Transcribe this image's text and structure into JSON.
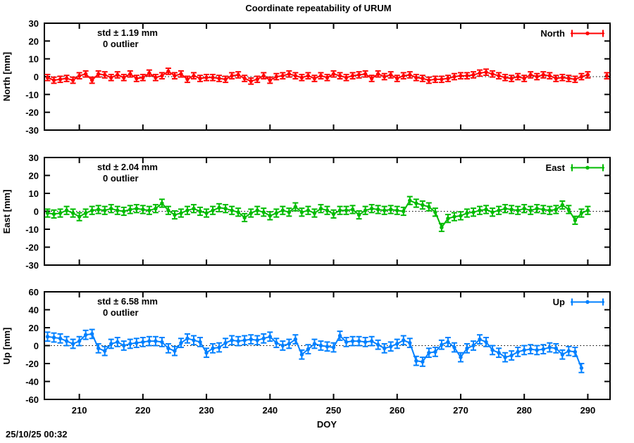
{
  "title": "Coordinate repeatability of URUM",
  "timestamp": "25/10/25 00:32",
  "chart_data": {
    "type": "line",
    "subtype": "yerrorbars-linespoints",
    "title": "Coordinate repeatability of URUM",
    "xlabel": "DOY",
    "x_range": [
      204.5,
      293.5
    ],
    "x_ticks": [
      210,
      220,
      230,
      240,
      250,
      260,
      270,
      280,
      290
    ],
    "grid": "zero-dotted-line-only",
    "legend_position": "top-right-inside",
    "doy": [
      205,
      206,
      207,
      208,
      209,
      210,
      211,
      212,
      213,
      214,
      215,
      216,
      217,
      218,
      219,
      220,
      221,
      222,
      223,
      224,
      225,
      226,
      227,
      228,
      229,
      230,
      231,
      232,
      233,
      234,
      235,
      236,
      237,
      238,
      239,
      240,
      241,
      242,
      243,
      244,
      245,
      246,
      247,
      248,
      249,
      250,
      251,
      252,
      253,
      254,
      255,
      256,
      257,
      258,
      259,
      260,
      261,
      262,
      263,
      264,
      265,
      266,
      267,
      268,
      269,
      270,
      271,
      272,
      273,
      274,
      275,
      276,
      277,
      278,
      279,
      280,
      281,
      282,
      283,
      284,
      285,
      286,
      287,
      288,
      289,
      290,
      291,
      292,
      293
    ],
    "panels": [
      {
        "name": "North",
        "ylabel": "North [mm]",
        "std_label": "std ± 1.19 mm",
        "outlier_label": "0 outlier",
        "color": "#ff0000",
        "ylim": [
          -30,
          30
        ],
        "yticks": [
          30,
          20,
          10,
          0,
          -10,
          -20,
          -30
        ],
        "ebar": 1.7,
        "values": [
          -0.5,
          -2,
          -1.5,
          -1,
          -2,
          0.5,
          1.5,
          -2,
          1.5,
          1,
          -0.5,
          1,
          -0.5,
          1.5,
          -1,
          -0.5,
          2,
          -0.5,
          0.5,
          3,
          0.5,
          1.5,
          -1.5,
          0.5,
          -1,
          -0.5,
          -0.5,
          -1,
          -1.5,
          0.5,
          1,
          -1,
          -2.5,
          -1.5,
          0.5,
          -2,
          0,
          0.5,
          1.5,
          0.5,
          -0.5,
          0.5,
          -1,
          0.5,
          -0.5,
          1.5,
          0.5,
          -0.5,
          0.5,
          1,
          1.5,
          -1,
          1.5,
          0,
          1,
          -1,
          0.5,
          1,
          -0.5,
          -1,
          -2,
          -1.5,
          -1.5,
          -1,
          0,
          0.5,
          0.5,
          1,
          2,
          2.5,
          1.5,
          0.5,
          -0.5,
          -1,
          0,
          -1,
          1,
          0,
          1,
          0.5,
          -1,
          -0.5,
          -1,
          -1.5,
          0,
          1,
          null,
          null,
          0.5
        ]
      },
      {
        "name": "East",
        "ylabel": "East [mm]",
        "std_label": "std ± 2.04 mm",
        "outlier_label": "0 outlier",
        "color": "#00bb00",
        "ylim": [
          -30,
          30
        ],
        "yticks": [
          30,
          20,
          10,
          0,
          -10,
          -20,
          -30
        ],
        "ebar": 2.2,
        "values": [
          -1,
          -1.5,
          -1,
          0.5,
          -1,
          -3,
          -1,
          0.5,
          1,
          0.5,
          1.5,
          0.5,
          0,
          1,
          1.5,
          1,
          0.5,
          1.5,
          4.5,
          0.5,
          -2,
          -1,
          0.5,
          1.5,
          0,
          -1,
          0.5,
          2,
          1.5,
          0.5,
          -0.5,
          -3.5,
          -1,
          0.5,
          -0.5,
          -2.5,
          -1,
          0.5,
          -0.5,
          2.5,
          -0.5,
          0.5,
          -1,
          1.5,
          0.5,
          -1.5,
          0.5,
          0.5,
          1,
          -2,
          0.5,
          1.5,
          1,
          0.5,
          1,
          0.5,
          0,
          6,
          4.5,
          3.5,
          2.5,
          -0.5,
          -9,
          -4,
          -3,
          -2.5,
          -1,
          -0.5,
          0.5,
          1,
          -0.5,
          0.5,
          1.5,
          1,
          0.5,
          1.5,
          0.5,
          1.5,
          1,
          0.5,
          1,
          3.5,
          1,
          -5,
          -1,
          0.5,
          null,
          null,
          null
        ]
      },
      {
        "name": "Up",
        "ylabel": "Up [mm]",
        "std_label": "std ± 6.58 mm",
        "outlier_label": "0 outlier",
        "color": "#0080ff",
        "ylim": [
          -60,
          60
        ],
        "yticks": [
          60,
          40,
          20,
          0,
          -20,
          -40,
          -60
        ],
        "ebar": 5,
        "values": [
          10,
          9,
          8,
          5,
          2,
          5,
          12,
          13,
          -3,
          -6,
          2,
          4,
          0,
          2,
          3,
          4,
          5,
          5,
          4,
          -3,
          -6,
          3,
          8,
          6,
          4,
          -8,
          -3,
          -2,
          3,
          6,
          5,
          6,
          7,
          6,
          8,
          10,
          3,
          0,
          2,
          7,
          -10,
          -4,
          2,
          0,
          -1,
          -2,
          11,
          4,
          5,
          5,
          4,
          5,
          1,
          -3,
          -1,
          2,
          6,
          3,
          -17,
          -18,
          -8,
          -7,
          1,
          4,
          -2,
          -13,
          -3,
          0,
          7,
          4,
          -5,
          -8,
          -13,
          -11,
          -7,
          -5,
          -4,
          -5,
          -4,
          -2,
          -3,
          -10,
          -6,
          -7,
          -25,
          null,
          null,
          null,
          null
        ]
      }
    ]
  }
}
